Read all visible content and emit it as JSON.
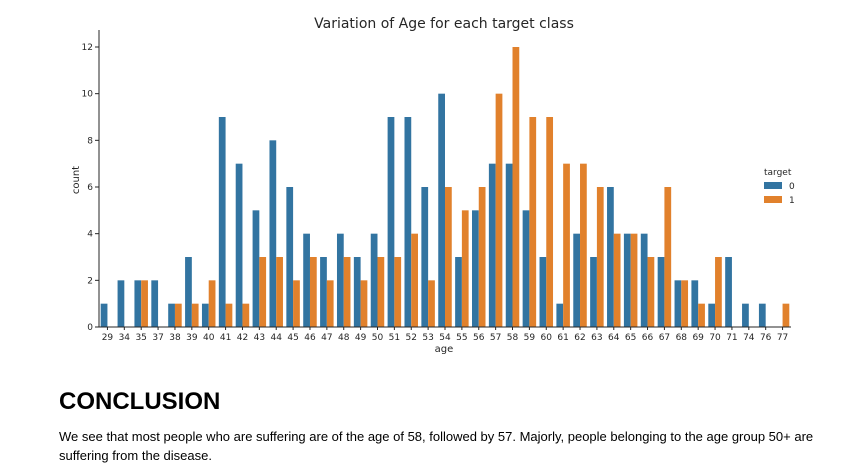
{
  "chart_data": {
    "type": "bar",
    "title": "Variation of Age for each target class",
    "xlabel": "age",
    "ylabel": "count",
    "ylim": [
      0,
      12.6
    ],
    "yticks": [
      0,
      2,
      4,
      6,
      8,
      10,
      12
    ],
    "grid": false,
    "legend_placement": "right",
    "legend_title": "target",
    "categories": [
      "29",
      "34",
      "35",
      "37",
      "38",
      "39",
      "40",
      "41",
      "42",
      "43",
      "44",
      "45",
      "46",
      "47",
      "48",
      "49",
      "50",
      "51",
      "52",
      "53",
      "54",
      "55",
      "56",
      "57",
      "58",
      "59",
      "60",
      "61",
      "62",
      "63",
      "64",
      "65",
      "66",
      "67",
      "68",
      "69",
      "70",
      "71",
      "74",
      "76",
      "77"
    ],
    "series": [
      {
        "name": "0",
        "color": "#3274a1",
        "values": [
          1,
          2,
          2,
          2,
          1,
          3,
          1,
          9,
          7,
          5,
          8,
          6,
          4,
          3,
          4,
          3,
          4,
          9,
          9,
          6,
          10,
          3,
          5,
          7,
          7,
          5,
          3,
          1,
          4,
          3,
          6,
          4,
          4,
          3,
          2,
          2,
          1,
          3,
          1,
          1,
          0
        ]
      },
      {
        "name": "1",
        "color": "#e1812c",
        "values": [
          0,
          0,
          2,
          0,
          1,
          1,
          2,
          1,
          1,
          3,
          3,
          2,
          3,
          2,
          3,
          2,
          3,
          3,
          4,
          2,
          6,
          5,
          6,
          10,
          12,
          9,
          9,
          7,
          7,
          6,
          4,
          4,
          3,
          6,
          2,
          1,
          3,
          0,
          0,
          0,
          1
        ]
      }
    ]
  },
  "conclusion": {
    "heading": "CONCLUSION",
    "text": "We see that most people who are suffering are of the age of 58, followed by 57. Majorly, people belonging to the age group 50+ are suffering from the disease."
  }
}
